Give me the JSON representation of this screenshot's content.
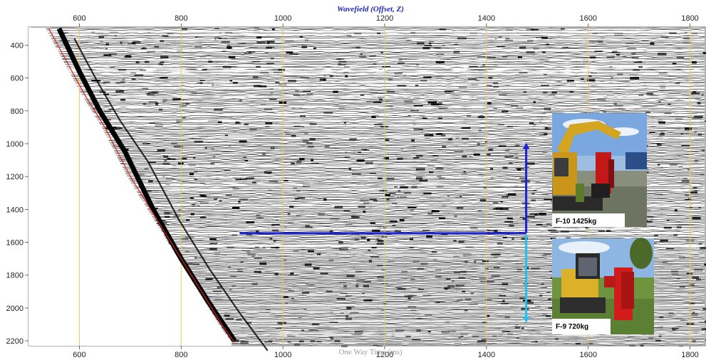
{
  "chart_data": {
    "type": "heatmap",
    "title": "Wavefield (Offset, Z)",
    "xlabel": "One Way Time (ms)",
    "ylabel": "",
    "xlim": [
      500,
      1830
    ],
    "ylim": [
      2230,
      290
    ],
    "x_ticks": [
      600,
      800,
      1000,
      1200,
      1400,
      1600,
      1800
    ],
    "y_ticks": [
      400,
      600,
      800,
      1000,
      1200,
      1400,
      1600,
      1800,
      2000,
      2200
    ],
    "first_break_pick": {
      "x": [
        540,
        575,
        610,
        650,
        700,
        760,
        820,
        880,
        905
      ],
      "y": [
        300,
        500,
        700,
        900,
        1200,
        1500,
        1800,
        2100,
        2210
      ]
    },
    "direct_arrival": {
      "x": [
        560,
        600,
        640,
        690,
        745,
        800,
        855,
        905
      ],
      "y": [
        300,
        560,
        800,
        1050,
        1400,
        1700,
        1970,
        2200
      ]
    },
    "annotations": {
      "horizontal_line": {
        "x": [
          915,
          1478
        ],
        "y": 1545,
        "color": "#1d22d6"
      },
      "arrow_up": {
        "x": 1478,
        "y": [
          1545,
          995
        ],
        "color": "#1d22d6"
      },
      "arrow_down": {
        "x": 1478,
        "y": [
          1545,
          2090
        ],
        "color": "#22c0f0"
      }
    },
    "legend_photos": [
      {
        "caption": "F-10 1425kg",
        "icon": "excavator-photo"
      },
      {
        "caption": "F-9 720kg",
        "icon": "skid-steer-photo"
      }
    ],
    "grid": true,
    "grid_color": "#e8c860"
  }
}
